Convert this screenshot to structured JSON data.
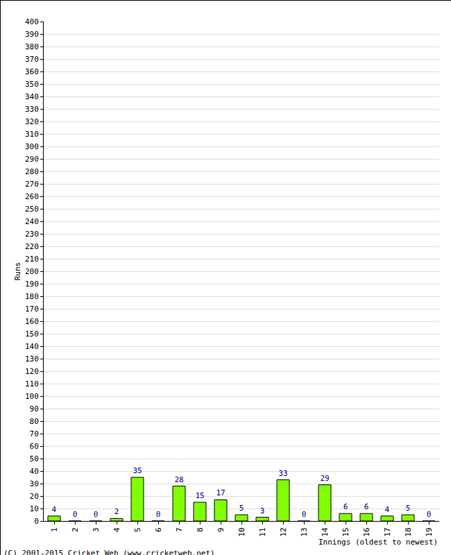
{
  "chart_data": {
    "type": "bar",
    "y_label": "Runs",
    "x_label": "Innings (oldest to newest)",
    "annotations": [
      "(C) 2001-2015 Cricket Web (www.cricketweb.net)"
    ],
    "categories": [
      "1",
      "2",
      "3",
      "4",
      "5",
      "6",
      "7",
      "8",
      "9",
      "10",
      "11",
      "12",
      "13",
      "14",
      "15",
      "16",
      "17",
      "18",
      "19"
    ],
    "values": [
      4,
      0,
      0,
      2,
      35,
      0,
      28,
      15,
      17,
      5,
      3,
      33,
      0,
      29,
      6,
      6,
      4,
      5,
      0
    ],
    "color": "#80ff00",
    "ylim": [
      0,
      400
    ],
    "yticks": [
      0,
      10,
      20,
      30,
      40,
      50,
      60,
      70,
      80,
      90,
      100,
      110,
      120,
      130,
      140,
      150,
      160,
      170,
      180,
      190,
      200,
      210,
      220,
      230,
      240,
      250,
      260,
      270,
      280,
      290,
      300,
      310,
      320,
      330,
      340,
      350,
      360,
      370,
      380,
      390,
      400
    ],
    "grid": true,
    "data_labels": true
  }
}
